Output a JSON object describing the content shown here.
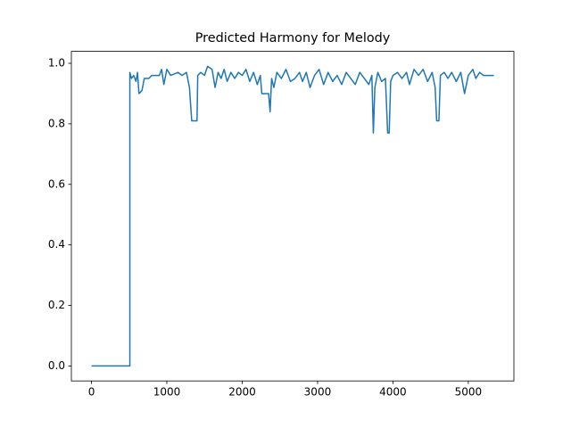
{
  "chart_data": {
    "type": "line",
    "title": "Predicted Harmony for Melody",
    "x": [
      0,
      509,
      509,
      530,
      560,
      590,
      610,
      630,
      670,
      700,
      760,
      800,
      900,
      930,
      960,
      1000,
      1050,
      1150,
      1200,
      1260,
      1300,
      1330,
      1400,
      1410,
      1450,
      1500,
      1540,
      1600,
      1640,
      1680,
      1720,
      1760,
      1800,
      1850,
      1900,
      1950,
      2000,
      2050,
      2100,
      2150,
      2200,
      2240,
      2260,
      2350,
      2370,
      2390,
      2420,
      2460,
      2520,
      2580,
      2640,
      2700,
      2760,
      2800,
      2850,
      2900,
      2960,
      3020,
      3080,
      3140,
      3200,
      3260,
      3320,
      3380,
      3440,
      3500,
      3560,
      3620,
      3680,
      3720,
      3740,
      3760,
      3800,
      3850,
      3900,
      3930,
      3950,
      3970,
      4000,
      4060,
      4120,
      4180,
      4220,
      4280,
      4340,
      4400,
      4460,
      4520,
      4560,
      4580,
      4610,
      4630,
      4680,
      4730,
      4780,
      4840,
      4900,
      4950,
      5000,
      5060,
      5100,
      5150,
      5200,
      5340
    ],
    "series": [
      {
        "color": "#1f77b4",
        "values": [
          0,
          0,
          0.97,
          0.95,
          0.96,
          0.94,
          0.97,
          0.9,
          0.91,
          0.95,
          0.95,
          0.96,
          0.96,
          0.98,
          0.93,
          0.98,
          0.96,
          0.97,
          0.96,
          0.97,
          0.92,
          0.81,
          0.81,
          0.96,
          0.97,
          0.96,
          0.99,
          0.98,
          0.92,
          0.97,
          0.95,
          0.98,
          0.94,
          0.97,
          0.95,
          0.97,
          0.96,
          0.98,
          0.94,
          0.97,
          0.93,
          0.96,
          0.9,
          0.9,
          0.84,
          0.95,
          0.92,
          0.97,
          0.95,
          0.98,
          0.94,
          0.95,
          0.97,
          0.94,
          0.97,
          0.92,
          0.96,
          0.98,
          0.93,
          0.97,
          0.94,
          0.96,
          0.93,
          0.97,
          0.95,
          0.93,
          0.97,
          0.95,
          0.93,
          0.96,
          0.77,
          0.92,
          0.97,
          0.94,
          0.95,
          0.77,
          0.77,
          0.94,
          0.96,
          0.97,
          0.95,
          0.97,
          0.93,
          0.98,
          0.96,
          0.98,
          0.94,
          0.97,
          0.92,
          0.81,
          0.81,
          0.96,
          0.97,
          0.95,
          0.97,
          0.94,
          0.97,
          0.9,
          0.96,
          0.98,
          0.95,
          0.97,
          0.96,
          0.96
        ]
      }
    ],
    "xlim": [
      -267,
      5605
    ],
    "ylim": [
      -0.0495,
      1.0395
    ],
    "xticks": [
      0,
      1000,
      2000,
      3000,
      4000,
      5000
    ],
    "yticks": [
      {
        "value": 0,
        "label": "0.0"
      },
      0.2,
      0.4,
      0.6,
      0.8,
      {
        "value": 1,
        "label": "1.0"
      }
    ]
  }
}
